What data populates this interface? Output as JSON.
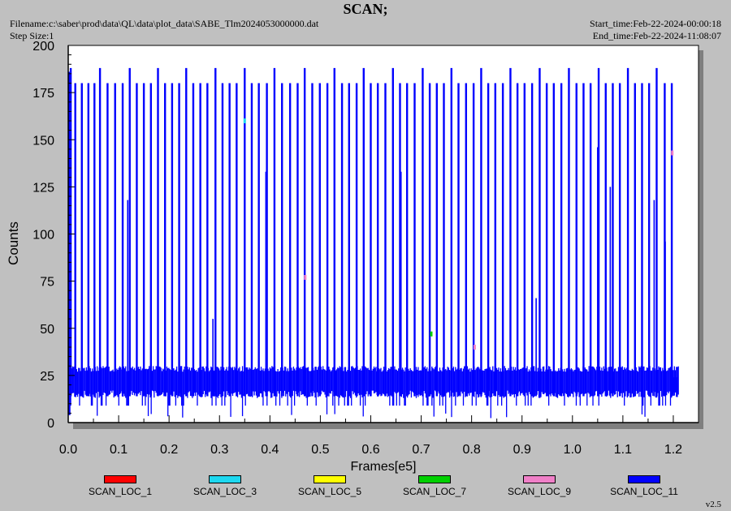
{
  "header": {
    "title": "SCAN;",
    "filename": "Filename:c:\\saber\\prod\\data\\QL\\data\\plot_data\\SABE_Tlm2024053000000.dat",
    "step_size": "Step Size:1",
    "start_time": "Start_time:Feb-22-2024-00:00:18",
    "end_time": "End_time:Feb-22-2024-11:08:07",
    "version": "v2.5"
  },
  "chart_data": {
    "type": "line",
    "title": "SCAN;",
    "xlabel": "Frames[e5]",
    "ylabel": "Counts",
    "xlim": [
      0.0,
      1.25
    ],
    "ylim": [
      0,
      200
    ],
    "xticks": [
      0.0,
      0.1,
      0.2,
      0.3,
      0.4,
      0.5,
      0.6,
      0.7,
      0.8,
      0.9,
      1.0,
      1.1,
      1.2
    ],
    "xtick_labels": [
      "0.0",
      "0.1",
      "0.2",
      "0.3",
      "0.4",
      "0.5",
      "0.6",
      "0.7",
      "0.8",
      "0.9",
      "1.0",
      "1.1",
      "1.2"
    ],
    "yticks": [
      0,
      25,
      50,
      75,
      100,
      125,
      150,
      175,
      200
    ],
    "ytick_labels": [
      "0",
      "25",
      "50",
      "75",
      "100",
      "125",
      "150",
      "175",
      "200"
    ],
    "grid": false,
    "legend_position": "bottom",
    "x_end": 1.21,
    "band_low": 13,
    "band_high": 30,
    "dip_min": 2,
    "spikes": [
      {
        "x": 0.005,
        "y": 188
      },
      {
        "x": 0.014,
        "y": 180
      },
      {
        "x": 0.027,
        "y": 180
      },
      {
        "x": 0.04,
        "y": 180
      },
      {
        "x": 0.052,
        "y": 180
      },
      {
        "x": 0.063,
        "y": 188
      },
      {
        "x": 0.078,
        "y": 180
      },
      {
        "x": 0.093,
        "y": 180
      },
      {
        "x": 0.108,
        "y": 180
      },
      {
        "x": 0.122,
        "y": 188
      },
      {
        "x": 0.136,
        "y": 180
      },
      {
        "x": 0.15,
        "y": 180
      },
      {
        "x": 0.164,
        "y": 180
      },
      {
        "x": 0.178,
        "y": 188
      },
      {
        "x": 0.192,
        "y": 180
      },
      {
        "x": 0.206,
        "y": 180
      },
      {
        "x": 0.22,
        "y": 180
      },
      {
        "x": 0.234,
        "y": 188
      },
      {
        "x": 0.248,
        "y": 180
      },
      {
        "x": 0.262,
        "y": 180
      },
      {
        "x": 0.276,
        "y": 180
      },
      {
        "x": 0.292,
        "y": 188
      },
      {
        "x": 0.306,
        "y": 180
      },
      {
        "x": 0.32,
        "y": 180
      },
      {
        "x": 0.334,
        "y": 180
      },
      {
        "x": 0.35,
        "y": 188
      },
      {
        "x": 0.364,
        "y": 180
      },
      {
        "x": 0.378,
        "y": 180
      },
      {
        "x": 0.394,
        "y": 180
      },
      {
        "x": 0.409,
        "y": 188
      },
      {
        "x": 0.424,
        "y": 180
      },
      {
        "x": 0.44,
        "y": 180
      },
      {
        "x": 0.455,
        "y": 180
      },
      {
        "x": 0.469,
        "y": 188
      },
      {
        "x": 0.484,
        "y": 180
      },
      {
        "x": 0.499,
        "y": 180
      },
      {
        "x": 0.514,
        "y": 180
      },
      {
        "x": 0.528,
        "y": 188
      },
      {
        "x": 0.543,
        "y": 180
      },
      {
        "x": 0.557,
        "y": 180
      },
      {
        "x": 0.572,
        "y": 180
      },
      {
        "x": 0.586,
        "y": 188
      },
      {
        "x": 0.6,
        "y": 180
      },
      {
        "x": 0.614,
        "y": 180
      },
      {
        "x": 0.629,
        "y": 180
      },
      {
        "x": 0.644,
        "y": 188
      },
      {
        "x": 0.658,
        "y": 180
      },
      {
        "x": 0.672,
        "y": 180
      },
      {
        "x": 0.687,
        "y": 180
      },
      {
        "x": 0.703,
        "y": 188
      },
      {
        "x": 0.717,
        "y": 180
      },
      {
        "x": 0.731,
        "y": 180
      },
      {
        "x": 0.745,
        "y": 180
      },
      {
        "x": 0.76,
        "y": 188
      },
      {
        "x": 0.774,
        "y": 180
      },
      {
        "x": 0.789,
        "y": 180
      },
      {
        "x": 0.804,
        "y": 180
      },
      {
        "x": 0.819,
        "y": 188
      },
      {
        "x": 0.833,
        "y": 180
      },
      {
        "x": 0.847,
        "y": 180
      },
      {
        "x": 0.862,
        "y": 180
      },
      {
        "x": 0.877,
        "y": 188
      },
      {
        "x": 0.891,
        "y": 180
      },
      {
        "x": 0.905,
        "y": 180
      },
      {
        "x": 0.92,
        "y": 180
      },
      {
        "x": 0.935,
        "y": 188
      },
      {
        "x": 0.949,
        "y": 180
      },
      {
        "x": 0.963,
        "y": 180
      },
      {
        "x": 0.978,
        "y": 180
      },
      {
        "x": 0.993,
        "y": 188
      },
      {
        "x": 1.008,
        "y": 180
      },
      {
        "x": 1.022,
        "y": 180
      },
      {
        "x": 1.036,
        "y": 180
      },
      {
        "x": 1.052,
        "y": 188
      },
      {
        "x": 1.066,
        "y": 180
      },
      {
        "x": 1.08,
        "y": 180
      },
      {
        "x": 1.094,
        "y": 180
      },
      {
        "x": 1.11,
        "y": 188
      },
      {
        "x": 1.124,
        "y": 180
      },
      {
        "x": 1.138,
        "y": 180
      },
      {
        "x": 1.152,
        "y": 180
      },
      {
        "x": 1.167,
        "y": 188
      },
      {
        "x": 1.183,
        "y": 180
      },
      {
        "x": 1.197,
        "y": 180
      }
    ],
    "partial_spikes": [
      {
        "x": 0.118,
        "y": 118
      },
      {
        "x": 0.287,
        "y": 55
      },
      {
        "x": 0.392,
        "y": 133
      },
      {
        "x": 0.514,
        "y": 121
      },
      {
        "x": 0.66,
        "y": 133
      },
      {
        "x": 0.928,
        "y": 66
      },
      {
        "x": 1.05,
        "y": 146
      },
      {
        "x": 1.075,
        "y": 125
      },
      {
        "x": 1.162,
        "y": 118
      },
      {
        "x": 1.184,
        "y": 96
      }
    ],
    "colored_marks": [
      {
        "x": 0.35,
        "y": 160,
        "series": "SCAN_LOC_3"
      },
      {
        "x": 0.47,
        "y": 77,
        "series": "SCAN_LOC_9"
      },
      {
        "x": 0.72,
        "y": 47,
        "series": "SCAN_LOC_7"
      },
      {
        "x": 0.806,
        "y": 40,
        "series": "SCAN_LOC_9"
      },
      {
        "x": 1.198,
        "y": 143,
        "series": "SCAN_LOC_9"
      }
    ],
    "series": [
      {
        "name": "SCAN_LOC_1",
        "color": "#ff0000"
      },
      {
        "name": "SCAN_LOC_3",
        "color": "#1ed8f0"
      },
      {
        "name": "SCAN_LOC_5",
        "color": "#ffff00"
      },
      {
        "name": "SCAN_LOC_7",
        "color": "#00d000"
      },
      {
        "name": "SCAN_LOC_9",
        "color": "#f080c8"
      },
      {
        "name": "SCAN_LOC_11",
        "color": "#0000ff"
      }
    ]
  }
}
